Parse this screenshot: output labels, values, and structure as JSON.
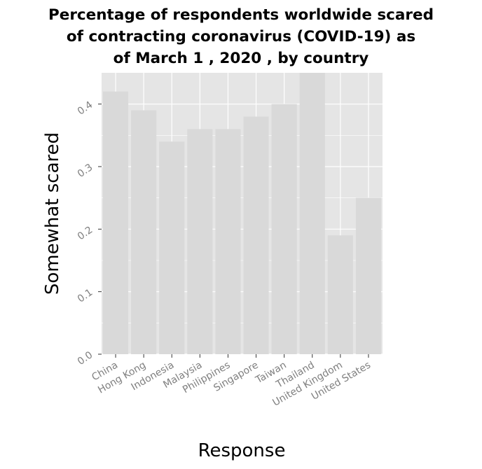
{
  "chart_data": {
    "type": "bar",
    "title_lines": [
      "Percentage of respondents worldwide scared",
      "of contracting coronavirus (COVID-19) as",
      "of March 1 , 2020 , by country"
    ],
    "xlabel": "Response",
    "ylabel": "Somewhat scared",
    "categories": [
      "China",
      "Hong Kong",
      "Indonesia",
      "Malaysia",
      "Philippines",
      "Singapore",
      "Taiwan",
      "Thailand",
      "United Kingdom",
      "United States"
    ],
    "values": [
      0.42,
      0.39,
      0.34,
      0.36,
      0.36,
      0.38,
      0.4,
      0.45,
      0.19,
      0.25
    ],
    "yticks": [
      "0.0",
      "0.1",
      "0.2",
      "0.3",
      "0.4"
    ],
    "ylim": [
      0,
      0.45
    ],
    "grid": true,
    "colors": {
      "panel_background": "#e5e5e5",
      "gridline": "#ffffff",
      "bar_fill": "#d9d9d9",
      "tick_label": "#7f7f7f",
      "text": "#000000"
    }
  }
}
